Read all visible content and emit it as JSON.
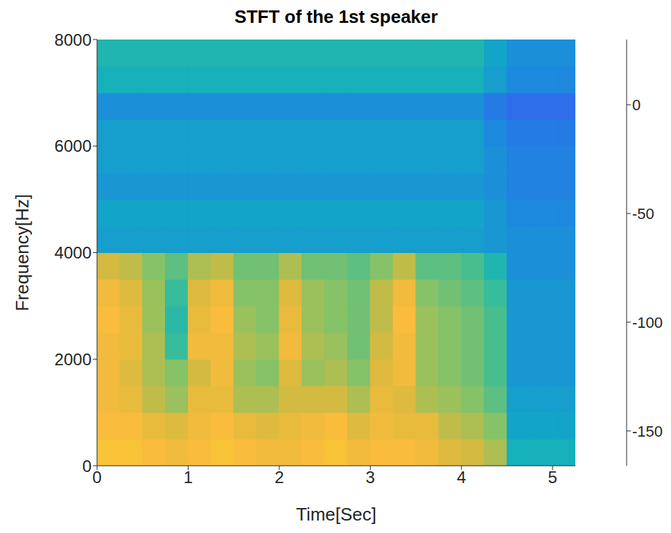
{
  "chart_data": {
    "type": "heatmap",
    "title": "STFT of the 1st speaker",
    "x_label": "Time[Sec]",
    "y_label": "Frequency[Hz]",
    "xlim": [
      0,
      5.25
    ],
    "xticks": [
      0,
      1,
      2,
      3,
      4,
      5
    ],
    "ylim": [
      0,
      8000
    ],
    "yticks": [
      0,
      2000,
      4000,
      6000,
      8000
    ],
    "x_edges": [
      0,
      0.25,
      0.5,
      0.75,
      1,
      1.25,
      1.5,
      1.75,
      2,
      2.25,
      2.5,
      2.75,
      3,
      3.25,
      3.5,
      3.75,
      4,
      4.25,
      4.5,
      4.75,
      5,
      5.25
    ],
    "y_edges": [
      0,
      500,
      1000,
      1500,
      2000,
      2500,
      3000,
      3500,
      4000,
      4500,
      5000,
      5500,
      6000,
      6500,
      7000,
      7500,
      8000
    ],
    "cells": [
      [
        5,
        5,
        0,
        -5,
        0,
        5,
        0,
        -5,
        -5,
        0,
        5,
        -5,
        0,
        0,
        -5,
        -15,
        -20,
        -30,
        -75,
        -75,
        -75
      ],
      [
        0,
        0,
        -10,
        -15,
        -5,
        0,
        -10,
        -15,
        -10,
        -5,
        0,
        -15,
        -5,
        -10,
        -10,
        -25,
        -30,
        -40,
        -85,
        -85,
        -85
      ],
      [
        -5,
        -10,
        -25,
        -35,
        -10,
        -10,
        -30,
        -30,
        -20,
        -20,
        -20,
        -30,
        -10,
        -15,
        -30,
        -35,
        -40,
        -50,
        -90,
        -90,
        -90
      ],
      [
        -5,
        -15,
        -30,
        -40,
        -20,
        -5,
        -35,
        -40,
        -15,
        -35,
        -30,
        -40,
        -15,
        -5,
        -35,
        -40,
        -45,
        -55,
        -95,
        -95,
        -95
      ],
      [
        -5,
        -10,
        -30,
        -60,
        -5,
        -5,
        -30,
        -35,
        -5,
        -30,
        -35,
        -45,
        -20,
        -5,
        -35,
        -40,
        -45,
        -55,
        -95,
        -95,
        -95
      ],
      [
        0,
        -10,
        -35,
        -65,
        -10,
        0,
        -35,
        -40,
        -10,
        -35,
        -40,
        -45,
        -25,
        0,
        -35,
        -40,
        -45,
        -55,
        -95,
        -95,
        -95
      ],
      [
        -5,
        -15,
        -35,
        -60,
        -15,
        -5,
        -40,
        -40,
        -15,
        -35,
        -40,
        -45,
        -25,
        -5,
        -40,
        -45,
        -50,
        -60,
        -95,
        -95,
        -95
      ],
      [
        -20,
        -25,
        -40,
        -50,
        -30,
        -25,
        -45,
        -45,
        -30,
        -45,
        -45,
        -50,
        -40,
        -25,
        -50,
        -50,
        -55,
        -70,
        -100,
        -100,
        -100
      ],
      [
        -90,
        -90,
        -90,
        -90,
        -90,
        -90,
        -90,
        -90,
        -90,
        -90,
        -90,
        -90,
        -90,
        -90,
        -90,
        -90,
        -90,
        -95,
        -100,
        -100,
        -100
      ],
      [
        -85,
        -85,
        -85,
        -85,
        -85,
        -85,
        -85,
        -85,
        -85,
        -85,
        -85,
        -85,
        -85,
        -85,
        -85,
        -85,
        -85,
        -95,
        -105,
        -105,
        -105
      ],
      [
        -95,
        -95,
        -95,
        -95,
        -95,
        -95,
        -95,
        -95,
        -95,
        -95,
        -95,
        -95,
        -95,
        -95,
        -95,
        -95,
        -95,
        -100,
        -110,
        -110,
        -110
      ],
      [
        -90,
        -90,
        -90,
        -90,
        -90,
        -90,
        -90,
        -90,
        -90,
        -90,
        -90,
        -90,
        -90,
        -90,
        -90,
        -90,
        -90,
        -100,
        -110,
        -110,
        -110
      ],
      [
        -90,
        -90,
        -90,
        -90,
        -90,
        -90,
        -90,
        -90,
        -90,
        -90,
        -90,
        -90,
        -90,
        -90,
        -90,
        -90,
        -90,
        -105,
        -115,
        -115,
        -115
      ],
      [
        -100,
        -100,
        -100,
        -100,
        -100,
        -100,
        -100,
        -100,
        -100,
        -100,
        -100,
        -100,
        -100,
        -100,
        -100,
        -100,
        -100,
        -115,
        -125,
        -125,
        -125
      ],
      [
        -75,
        -75,
        -75,
        -75,
        -75,
        -75,
        -75,
        -75,
        -75,
        -75,
        -75,
        -75,
        -75,
        -75,
        -75,
        -75,
        -75,
        -90,
        -105,
        -105,
        -105
      ],
      [
        -70,
        -70,
        -70,
        -70,
        -70,
        -70,
        -70,
        -70,
        -70,
        -70,
        -70,
        -70,
        -70,
        -70,
        -70,
        -70,
        -70,
        -85,
        -100,
        -100,
        -100
      ]
    ],
    "colorbar_range": [
      -166,
      30
    ],
    "colorbar_ticks": [
      0,
      -50,
      -100,
      -150
    ]
  }
}
